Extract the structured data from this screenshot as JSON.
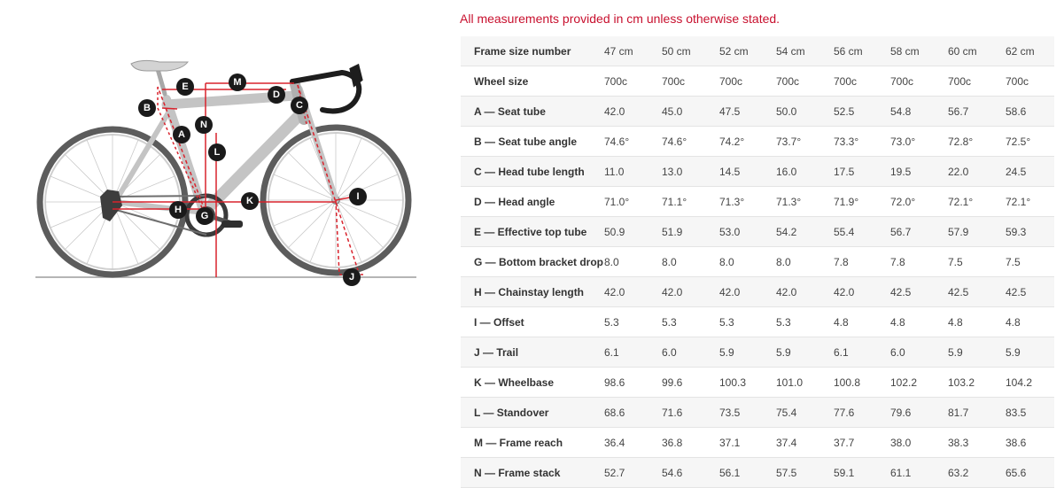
{
  "note": "All measurements provided in cm unless otherwise stated.",
  "colors": {
    "accent": "#c8102e",
    "measure_line": "#d9232d",
    "marker": "#1a1a1a",
    "frame": "#c4c4c4"
  },
  "diagram": {
    "markers": {
      "A": "A",
      "B": "B",
      "C": "C",
      "D": "D",
      "E": "E",
      "G": "G",
      "H": "H",
      "I": "I",
      "J": "J",
      "K": "K",
      "L": "L",
      "M": "M",
      "N": "N"
    }
  },
  "table": {
    "rows": [
      {
        "label": "Frame size number",
        "values": [
          "47 cm",
          "50 cm",
          "52 cm",
          "54 cm",
          "56 cm",
          "58 cm",
          "60 cm",
          "62 cm"
        ]
      },
      {
        "label": "Wheel size",
        "values": [
          "700c",
          "700c",
          "700c",
          "700c",
          "700c",
          "700c",
          "700c",
          "700c"
        ]
      },
      {
        "label": "A — Seat tube",
        "values": [
          "42.0",
          "45.0",
          "47.5",
          "50.0",
          "52.5",
          "54.8",
          "56.7",
          "58.6"
        ]
      },
      {
        "label": "B — Seat tube angle",
        "values": [
          "74.6°",
          "74.6°",
          "74.2°",
          "73.7°",
          "73.3°",
          "73.0°",
          "72.8°",
          "72.5°"
        ]
      },
      {
        "label": "C — Head tube length",
        "values": [
          "11.0",
          "13.0",
          "14.5",
          "16.0",
          "17.5",
          "19.5",
          "22.0",
          "24.5"
        ]
      },
      {
        "label": "D — Head angle",
        "values": [
          "71.0°",
          "71.1°",
          "71.3°",
          "71.3°",
          "71.9°",
          "72.0°",
          "72.1°",
          "72.1°"
        ]
      },
      {
        "label": "E — Effective top tube",
        "values": [
          "50.9",
          "51.9",
          "53.0",
          "54.2",
          "55.4",
          "56.7",
          "57.9",
          "59.3"
        ]
      },
      {
        "label": "G — Bottom bracket drop",
        "values": [
          "8.0",
          "8.0",
          "8.0",
          "8.0",
          "7.8",
          "7.8",
          "7.5",
          "7.5"
        ]
      },
      {
        "label": "H — Chainstay length",
        "values": [
          "42.0",
          "42.0",
          "42.0",
          "42.0",
          "42.0",
          "42.5",
          "42.5",
          "42.5"
        ]
      },
      {
        "label": "I — Offset",
        "values": [
          "5.3",
          "5.3",
          "5.3",
          "5.3",
          "4.8",
          "4.8",
          "4.8",
          "4.8"
        ]
      },
      {
        "label": "J — Trail",
        "values": [
          "6.1",
          "6.0",
          "5.9",
          "5.9",
          "6.1",
          "6.0",
          "5.9",
          "5.9"
        ]
      },
      {
        "label": "K — Wheelbase",
        "values": [
          "98.6",
          "99.6",
          "100.3",
          "101.0",
          "100.8",
          "102.2",
          "103.2",
          "104.2"
        ]
      },
      {
        "label": "L — Standover",
        "values": [
          "68.6",
          "71.6",
          "73.5",
          "75.4",
          "77.6",
          "79.6",
          "81.7",
          "83.5"
        ]
      },
      {
        "label": "M — Frame reach",
        "values": [
          "36.4",
          "36.8",
          "37.1",
          "37.4",
          "37.7",
          "38.0",
          "38.3",
          "38.6"
        ]
      },
      {
        "label": "N — Frame stack",
        "values": [
          "52.7",
          "54.6",
          "56.1",
          "57.5",
          "59.1",
          "61.1",
          "63.2",
          "65.6"
        ]
      }
    ]
  }
}
